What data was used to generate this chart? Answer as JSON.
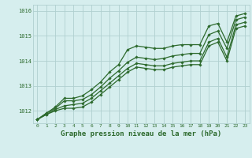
{
  "title": "Graphe pression niveau de la mer (hPa)",
  "x_hours": [
    0,
    1,
    2,
    3,
    4,
    5,
    6,
    7,
    8,
    9,
    10,
    11,
    12,
    13,
    14,
    15,
    16,
    17,
    18,
    19,
    20,
    21,
    22,
    23
  ],
  "series": [
    [
      1011.65,
      1011.9,
      1012.15,
      1012.5,
      1012.5,
      1012.6,
      1012.85,
      1013.15,
      1013.55,
      1013.85,
      1014.45,
      1014.6,
      1014.55,
      1014.5,
      1014.5,
      1014.6,
      1014.65,
      1014.65,
      1014.65,
      1015.4,
      1015.5,
      1014.75,
      1015.8,
      1015.9
    ],
    [
      1011.65,
      1011.9,
      1012.1,
      1012.4,
      1012.4,
      1012.45,
      1012.65,
      1012.95,
      1013.3,
      1013.6,
      1013.95,
      1014.15,
      1014.1,
      1014.05,
      1014.1,
      1014.2,
      1014.25,
      1014.3,
      1014.3,
      1015.05,
      1015.2,
      1014.5,
      1015.65,
      1015.75
    ],
    [
      1011.65,
      1011.85,
      1012.05,
      1012.2,
      1012.25,
      1012.3,
      1012.5,
      1012.8,
      1013.1,
      1013.4,
      1013.7,
      1013.9,
      1013.85,
      1013.8,
      1013.8,
      1013.9,
      1013.95,
      1014.0,
      1014.0,
      1014.75,
      1014.9,
      1014.15,
      1015.45,
      1015.55
    ],
    [
      1011.65,
      1011.85,
      1012.0,
      1012.1,
      1012.1,
      1012.15,
      1012.35,
      1012.65,
      1012.95,
      1013.25,
      1013.55,
      1013.75,
      1013.7,
      1013.65,
      1013.65,
      1013.75,
      1013.8,
      1013.85,
      1013.85,
      1014.6,
      1014.75,
      1014.0,
      1015.3,
      1015.4
    ]
  ],
  "line_color": "#2d6a2d",
  "line_width": 0.9,
  "marker": "D",
  "marker_size": 1.8,
  "ylim": [
    1011.5,
    1016.25
  ],
  "yticks": [
    1012,
    1013,
    1014,
    1015,
    1016
  ],
  "xlim": [
    -0.5,
    23.5
  ],
  "bg_color": "#d6eeee",
  "grid_color": "#b0d0d0",
  "axis_color": "#2d6a2d",
  "title_color": "#2d6a2d",
  "title_fontsize": 6.5
}
